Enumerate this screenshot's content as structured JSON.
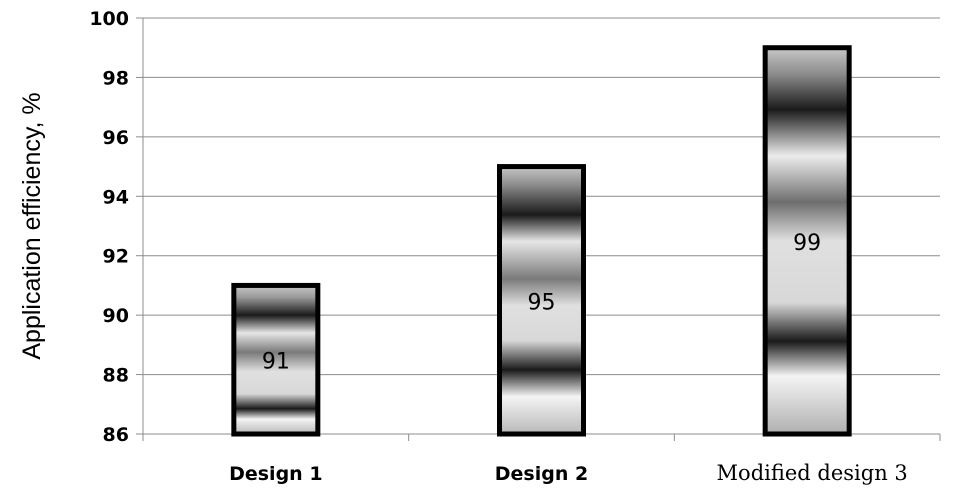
{
  "chart_data": {
    "type": "bar",
    "categories": [
      "Design 1",
      "Design 2",
      "Modified design 3"
    ],
    "values": [
      91,
      95,
      99
    ],
    "data_labels": [
      "91",
      "95",
      "99"
    ],
    "ylabel": "Application efficiency, %",
    "xlabel": "",
    "ylim": [
      86,
      100
    ],
    "yticks": [
      86,
      88,
      90,
      92,
      94,
      96,
      98,
      100
    ],
    "grid": true,
    "legend": "none"
  }
}
